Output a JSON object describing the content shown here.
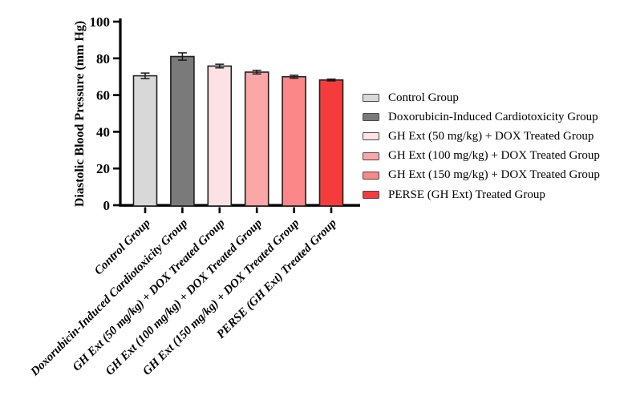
{
  "y_axis": {
    "label": "Diastolic Blood Pressure (mm Hg)",
    "ticks": [
      0,
      20,
      40,
      60,
      80,
      100
    ]
  },
  "chart_data": {
    "type": "bar",
    "title": "",
    "xlabel": "",
    "ylabel": "Diastolic Blood Pressure (mm Hg)",
    "ylim": [
      0,
      100
    ],
    "yticks": [
      0,
      20,
      40,
      60,
      80,
      100
    ],
    "grid": false,
    "legend_position": "right-center",
    "categories": [
      "Control Group",
      "Doxorubicin-Induced Cardiotoxicity Group",
      "GH Ext (50 mg/kg) + DOX Treated Group",
      "GH Ext (100 mg/kg) + DOX Treated Group",
      "GH Ext (150 mg/kg) + DOX Treated Group",
      "PERSE (GH Ext) Treated Group"
    ],
    "values": [
      70.5,
      81,
      75.8,
      72.5,
      70,
      68.2
    ],
    "errors": [
      1.5,
      2,
      1,
      1,
      0.8,
      0.5
    ],
    "bar_colors": [
      "#d8d8d8",
      "#7a7a7a",
      "#fce2e4",
      "#fba6a7",
      "#fb8788",
      "#f53c3c"
    ],
    "bar_border_color": "#1f1f1f",
    "error_bar_color": "#1a1a1a",
    "axis_color": "#000000",
    "legend": [
      {
        "label": "Control Group",
        "color": "#d8d8d8"
      },
      {
        "label": "Doxorubicin-Induced Cardiotoxicity Group",
        "color": "#7a7a7a"
      },
      {
        "label": "GH Ext (50 mg/kg) + DOX Treated Group",
        "color": "#fce2e4"
      },
      {
        "label": "GH Ext (100 mg/kg) + DOX Treated Group",
        "color": "#fba6a7"
      },
      {
        "label": "GH Ext (150 mg/kg) + DOX Treated Group",
        "color": "#fb8788"
      },
      {
        "label": "PERSE (GH Ext) Treated Group",
        "color": "#f53c3c"
      }
    ]
  }
}
